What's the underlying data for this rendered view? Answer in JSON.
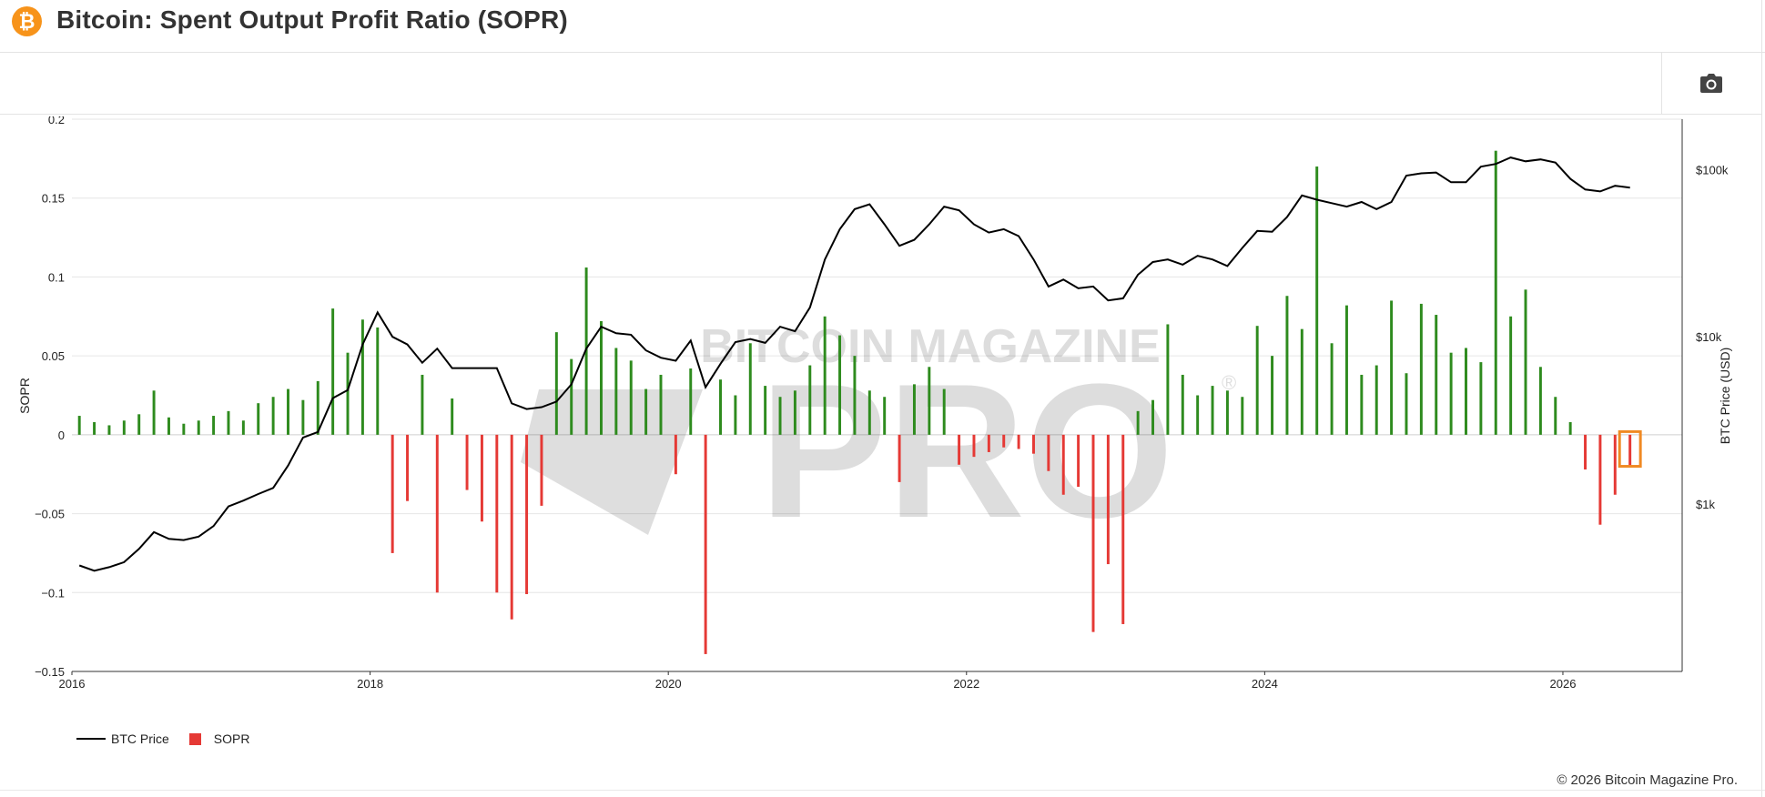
{
  "header": {
    "logo_glyph": "₿",
    "logo_icon": "bitcoin-icon",
    "title": "Bitcoin: Spent Output Profit Ratio (SOPR)"
  },
  "toolbar": {
    "camera_icon": "camera-icon"
  },
  "watermark": {
    "line1": "BITCOIN MAGAZINE",
    "line2": "PRO",
    "mark": "®"
  },
  "legend": {
    "price_label": "BTC Price",
    "sopr_label": "SOPR"
  },
  "footer": {
    "copyright": "© 2026 Bitcoin Magazine Pro."
  },
  "colors": {
    "positive": "#2e8b1e",
    "negative": "#e53935",
    "price": "#000000",
    "highlight": "#f08a24"
  },
  "chart_data": {
    "type": "bar",
    "title": "Bitcoin: Spent Output Profit Ratio (SOPR)",
    "ylabel": "SOPR",
    "y2label": "BTC Price (USD)",
    "ylim": [
      -0.15,
      0.2
    ],
    "yticks": [
      0.2,
      0.15,
      0.1,
      0.05,
      0,
      -0.05,
      -0.1,
      -0.15
    ],
    "yticklabels": [
      "0.2",
      "0.15",
      "0.1",
      "0.05",
      "0",
      "−0.05",
      "−0.1",
      "−0.15"
    ],
    "y2_log_scale": true,
    "y2ticks": [
      100000,
      10000,
      1000
    ],
    "y2ticklabels": [
      "$100k",
      "$10k",
      "$1k"
    ],
    "xlim": [
      2016.0,
      2026.8
    ],
    "xticks": [
      2016,
      2018,
      2020,
      2022,
      2024,
      2026
    ],
    "xticklabels": [
      "2016",
      "2018",
      "2020",
      "2022",
      "2024",
      "2026"
    ],
    "grid": true,
    "legend_position": "bottom-left",
    "highlight_box": {
      "x_range": [
        2026.38,
        2026.52
      ],
      "y_range": [
        -0.02,
        0.002
      ]
    },
    "series": [
      {
        "name": "SOPR",
        "type": "bar",
        "x": [
          2016.0,
          2016.1,
          2016.2,
          2016.3,
          2016.4,
          2016.5,
          2016.6,
          2016.7,
          2016.8,
          2016.9,
          2017.0,
          2017.1,
          2017.2,
          2017.3,
          2017.4,
          2017.5,
          2017.6,
          2017.7,
          2017.8,
          2017.9,
          2018.0,
          2018.1,
          2018.2,
          2018.3,
          2018.4,
          2018.5,
          2018.6,
          2018.7,
          2018.8,
          2018.9,
          2019.0,
          2019.1,
          2019.2,
          2019.3,
          2019.4,
          2019.5,
          2019.6,
          2019.7,
          2019.8,
          2019.9,
          2020.0,
          2020.1,
          2020.2,
          2020.3,
          2020.4,
          2020.5,
          2020.6,
          2020.7,
          2020.8,
          2020.9,
          2021.0,
          2021.1,
          2021.2,
          2021.3,
          2021.4,
          2021.5,
          2021.6,
          2021.7,
          2021.8,
          2021.9,
          2022.0,
          2022.1,
          2022.2,
          2022.3,
          2022.4,
          2022.5,
          2022.6,
          2022.7,
          2022.8,
          2022.9,
          2023.0,
          2023.1,
          2023.2,
          2023.3,
          2023.4,
          2023.5,
          2023.6,
          2023.7,
          2023.8,
          2023.9,
          2024.0,
          2024.1,
          2024.2,
          2024.3,
          2024.4,
          2024.5,
          2024.6,
          2024.7,
          2024.8,
          2024.9,
          2025.0,
          2025.1,
          2025.2,
          2025.3,
          2025.4,
          2025.5,
          2025.6,
          2025.7,
          2025.8,
          2025.9,
          2026.0,
          2026.1,
          2026.2,
          2026.3,
          2026.4
        ],
        "values": [
          0.012,
          0.008,
          0.006,
          0.009,
          0.013,
          0.028,
          0.011,
          0.007,
          0.009,
          0.012,
          0.015,
          0.009,
          0.02,
          0.024,
          0.029,
          0.022,
          0.034,
          0.08,
          0.052,
          0.073,
          0.068,
          -0.075,
          -0.042,
          0.038,
          -0.1,
          0.023,
          -0.035,
          -0.055,
          -0.1,
          -0.117,
          -0.101,
          -0.045,
          0.065,
          0.048,
          0.106,
          0.072,
          0.055,
          0.047,
          0.029,
          0.038,
          -0.025,
          0.042,
          -0.139,
          0.035,
          0.025,
          0.058,
          0.031,
          0.024,
          0.028,
          0.044,
          0.075,
          0.063,
          0.05,
          0.028,
          0.024,
          -0.03,
          0.032,
          0.043,
          0.029,
          -0.019,
          -0.014,
          -0.011,
          -0.008,
          -0.009,
          -0.012,
          -0.023,
          -0.038,
          -0.033,
          -0.125,
          -0.082,
          -0.12,
          0.015,
          0.022,
          0.07,
          0.038,
          0.025,
          0.031,
          0.028,
          0.024,
          0.069,
          0.05,
          0.088,
          0.067,
          0.17,
          0.058,
          0.082,
          0.038,
          0.044,
          0.085,
          0.039,
          0.083,
          0.076,
          0.052,
          0.055,
          0.046,
          0.18,
          0.075,
          0.092,
          0.043,
          0.024,
          0.008,
          -0.022,
          -0.057,
          -0.038,
          -0.02
        ]
      },
      {
        "name": "BTC Price",
        "type": "line",
        "x": [
          2016.0,
          2016.1,
          2016.2,
          2016.3,
          2016.4,
          2016.5,
          2016.6,
          2016.7,
          2016.8,
          2016.9,
          2017.0,
          2017.1,
          2017.2,
          2017.3,
          2017.4,
          2017.5,
          2017.6,
          2017.7,
          2017.8,
          2017.9,
          2018.0,
          2018.1,
          2018.2,
          2018.3,
          2018.4,
          2018.5,
          2018.6,
          2018.7,
          2018.8,
          2018.9,
          2019.0,
          2019.1,
          2019.2,
          2019.3,
          2019.4,
          2019.5,
          2019.6,
          2019.7,
          2019.8,
          2019.9,
          2020.0,
          2020.1,
          2020.2,
          2020.3,
          2020.4,
          2020.5,
          2020.6,
          2020.7,
          2020.8,
          2020.9,
          2021.0,
          2021.1,
          2021.2,
          2021.3,
          2021.4,
          2021.5,
          2021.6,
          2021.7,
          2021.8,
          2021.9,
          2022.0,
          2022.1,
          2022.2,
          2022.3,
          2022.4,
          2022.5,
          2022.6,
          2022.7,
          2022.8,
          2022.9,
          2023.0,
          2023.1,
          2023.2,
          2023.3,
          2023.4,
          2023.5,
          2023.6,
          2023.7,
          2023.8,
          2023.9,
          2024.0,
          2024.1,
          2024.2,
          2024.3,
          2024.4,
          2024.5,
          2024.6,
          2024.7,
          2024.8,
          2024.9,
          2025.0,
          2025.1,
          2025.2,
          2025.3,
          2025.4,
          2025.5,
          2025.6,
          2025.7,
          2025.8,
          2025.9,
          2026.0,
          2026.1,
          2026.2,
          2026.3,
          2026.4
        ],
        "values": [
          430,
          400,
          420,
          450,
          540,
          680,
          620,
          610,
          640,
          740,
          970,
          1050,
          1150,
          1250,
          1700,
          2500,
          2700,
          4300,
          4800,
          9000,
          14000,
          10000,
          9000,
          7000,
          8500,
          6500,
          6500,
          6500,
          6500,
          4000,
          3700,
          3800,
          4100,
          5200,
          8500,
          11500,
          10500,
          10300,
          8300,
          7500,
          7200,
          9500,
          5000,
          6900,
          9300,
          9700,
          9200,
          11500,
          10800,
          15000,
          29000,
          44000,
          58000,
          62000,
          47000,
          35000,
          38000,
          47000,
          60000,
          57000,
          47000,
          42000,
          44000,
          40000,
          29000,
          20000,
          22000,
          19500,
          20000,
          16500,
          17000,
          23500,
          28000,
          29000,
          27000,
          30500,
          29000,
          26500,
          34000,
          43000,
          42500,
          52000,
          70000,
          66000,
          63000,
          60000,
          64000,
          58000,
          64000,
          92000,
          95000,
          96000,
          84000,
          84000,
          104000,
          108000,
          118000,
          112000,
          115000,
          110000,
          88000,
          76000,
          74000,
          80000,
          78000
        ]
      }
    ]
  }
}
